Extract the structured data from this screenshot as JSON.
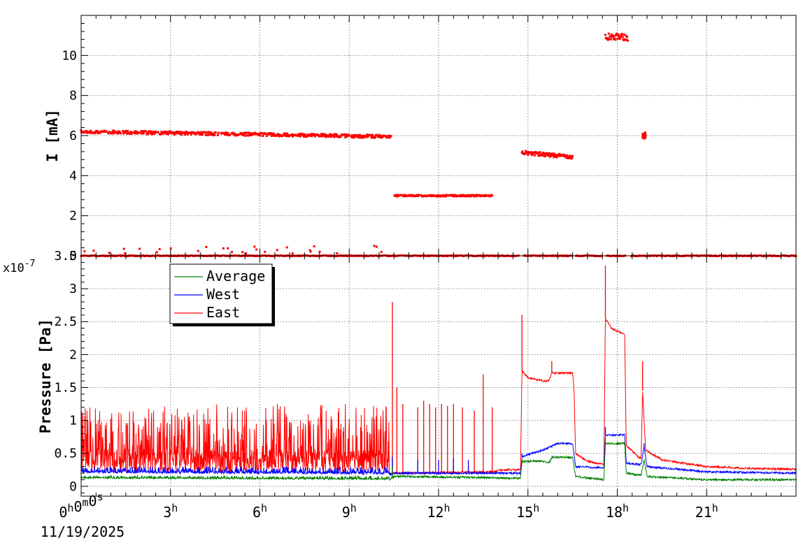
{
  "chart_data": [
    {
      "type": "scatter",
      "panel": "current",
      "ylabel": "I [mA]",
      "xlim_hours": [
        0,
        24
      ],
      "ylim": [
        0,
        12
      ],
      "y_ticks": [
        0,
        2,
        4,
        6,
        8,
        10
      ],
      "y_tick_labels": [
        "0",
        "2",
        "4",
        "6",
        "8",
        "10"
      ],
      "grid": true,
      "series": [
        {
          "color": "#ff0000",
          "segments": [
            {
              "x_start": 0.0,
              "x_end": 10.4,
              "y_start": 6.2,
              "y_end": 5.95,
              "jitter": 0.08
            },
            {
              "x_start": 10.5,
              "x_end": 13.8,
              "y_start": 3.0,
              "y_end": 3.0,
              "jitter": 0.04
            },
            {
              "x_start": 14.8,
              "x_end": 16.5,
              "y_start": 5.15,
              "y_end": 4.95,
              "jitter": 0.1
            },
            {
              "x_start": 17.6,
              "x_end": 18.35,
              "y_start": 10.95,
              "y_end": 10.9,
              "jitter": 0.18
            },
            {
              "x_start": 18.85,
              "x_end": 18.95,
              "y_start": 6.0,
              "y_end": 6.0,
              "jitter": 0.15
            },
            {
              "x_start": 0.0,
              "x_end": 24.0,
              "y_start": 0.0,
              "y_end": 0.0,
              "jitter": 0.02
            }
          ]
        }
      ]
    },
    {
      "type": "line",
      "panel": "pressure",
      "ylabel": "Pressure [Pa]",
      "y_exponent_label": "x10",
      "y_exponent_power": "-7",
      "xlim_hours": [
        0,
        24
      ],
      "ylim": [
        -0.15,
        3.5
      ],
      "y_ticks": [
        0,
        0.5,
        1,
        1.5,
        2,
        2.5,
        3,
        3.5
      ],
      "y_tick_labels": [
        "0",
        "0.5",
        "1",
        "1.5",
        "2",
        "2.5",
        "3",
        "3.5"
      ],
      "x_ticks_hours": [
        0,
        3,
        6,
        9,
        12,
        15,
        18,
        21
      ],
      "x_tick_labels": [
        {
          "num": "0",
          "unit": "h",
          "extra": [
            [
              "0",
              "m"
            ],
            [
              "0",
              "s"
            ]
          ]
        },
        {
          "num": "3",
          "unit": "h"
        },
        {
          "num": "6",
          "unit": "h"
        },
        {
          "num": "9",
          "unit": "h"
        },
        {
          "num": "12",
          "unit": "h"
        },
        {
          "num": "15",
          "unit": "h"
        },
        {
          "num": "18",
          "unit": "h"
        },
        {
          "num": "21",
          "unit": "h"
        }
      ],
      "date_label": "11/19/2025",
      "grid": true,
      "legend": {
        "placement": "top-left",
        "entries": [
          {
            "name": "Average",
            "color": "#008000"
          },
          {
            "name": "West",
            "color": "#0000ff"
          },
          {
            "name": "East",
            "color": "#ff0000"
          }
        ]
      },
      "series": [
        {
          "name": "East",
          "color": "#ff0000",
          "baseline_points": [
            [
              0,
              0.2
            ],
            [
              10.35,
              0.2
            ],
            [
              10.5,
              0.2
            ],
            [
              13.9,
              0.22
            ],
            [
              14.1,
              0.25
            ],
            [
              14.75,
              0.25
            ],
            [
              14.8,
              1.75
            ],
            [
              15.0,
              1.65
            ],
            [
              15.5,
              1.6
            ],
            [
              15.7,
              1.6
            ],
            [
              15.8,
              1.72
            ],
            [
              16.5,
              1.72
            ],
            [
              16.55,
              1.45
            ],
            [
              16.6,
              0.5
            ],
            [
              17.0,
              0.38
            ],
            [
              17.55,
              0.33
            ],
            [
              17.6,
              2.55
            ],
            [
              17.8,
              2.4
            ],
            [
              18.25,
              2.3
            ],
            [
              18.3,
              0.62
            ],
            [
              18.7,
              0.45
            ],
            [
              18.8,
              0.42
            ],
            [
              18.85,
              1.45
            ],
            [
              18.95,
              0.55
            ],
            [
              19.5,
              0.4
            ],
            [
              21.0,
              0.3
            ],
            [
              22.5,
              0.27
            ],
            [
              24.0,
              0.26
            ]
          ],
          "spiky_intervals": [
            [
              0,
              10.35,
              1.25
            ]
          ],
          "spikes": [
            [
              10.45,
              2.8
            ],
            [
              10.6,
              1.5
            ],
            [
              10.8,
              1.25
            ],
            [
              11.3,
              1.2
            ],
            [
              11.5,
              1.3
            ],
            [
              11.7,
              1.25
            ],
            [
              11.9,
              1.2
            ],
            [
              12.1,
              1.25
            ],
            [
              12.3,
              1.22
            ],
            [
              12.5,
              1.25
            ],
            [
              12.8,
              1.2
            ],
            [
              13.2,
              1.15
            ],
            [
              13.5,
              1.7
            ],
            [
              13.8,
              1.2
            ],
            [
              14.8,
              2.6
            ],
            [
              15.8,
              1.9
            ],
            [
              17.6,
              3.35
            ],
            [
              18.85,
              1.9
            ]
          ]
        },
        {
          "name": "West",
          "color": "#0000ff",
          "baseline_points": [
            [
              0,
              0.2
            ],
            [
              10.35,
              0.18
            ],
            [
              10.5,
              0.2
            ],
            [
              13.9,
              0.2
            ],
            [
              14.75,
              0.2
            ],
            [
              14.8,
              0.45
            ],
            [
              15.5,
              0.55
            ],
            [
              16.0,
              0.65
            ],
            [
              16.5,
              0.65
            ],
            [
              16.6,
              0.3
            ],
            [
              17.55,
              0.28
            ],
            [
              17.6,
              0.78
            ],
            [
              18.25,
              0.78
            ],
            [
              18.3,
              0.35
            ],
            [
              18.8,
              0.33
            ],
            [
              18.9,
              0.6
            ],
            [
              19.0,
              0.3
            ],
            [
              21.0,
              0.22
            ],
            [
              24.0,
              0.2
            ]
          ],
          "spiky_intervals": [
            [
              0,
              10.35,
              0.3
            ]
          ],
          "spikes": [
            [
              10.45,
              0.45
            ],
            [
              11.3,
              0.4
            ],
            [
              12.0,
              0.4
            ],
            [
              12.5,
              0.42
            ],
            [
              13.0,
              0.4
            ],
            [
              14.8,
              0.5
            ],
            [
              17.6,
              0.9
            ],
            [
              18.9,
              0.65
            ]
          ]
        },
        {
          "name": "Average",
          "color": "#008000",
          "baseline_points": [
            [
              0,
              0.12
            ],
            [
              10.35,
              0.1
            ],
            [
              10.5,
              0.15
            ],
            [
              13.9,
              0.13
            ],
            [
              14.75,
              0.12
            ],
            [
              14.8,
              0.38
            ],
            [
              15.5,
              0.38
            ],
            [
              15.7,
              0.35
            ],
            [
              15.8,
              0.44
            ],
            [
              16.5,
              0.44
            ],
            [
              16.6,
              0.15
            ],
            [
              17.55,
              0.1
            ],
            [
              17.6,
              0.65
            ],
            [
              18.25,
              0.65
            ],
            [
              18.3,
              0.2
            ],
            [
              18.8,
              0.17
            ],
            [
              18.9,
              0.4
            ],
            [
              19.0,
              0.15
            ],
            [
              21.0,
              0.1
            ],
            [
              24.0,
              0.1
            ]
          ],
          "spiky_intervals": [
            [
              0,
              10.35,
              0.16
            ]
          ],
          "spikes": [
            [
              10.45,
              0.3
            ],
            [
              14.8,
              0.4
            ],
            [
              17.6,
              0.75
            ]
          ]
        }
      ]
    }
  ]
}
